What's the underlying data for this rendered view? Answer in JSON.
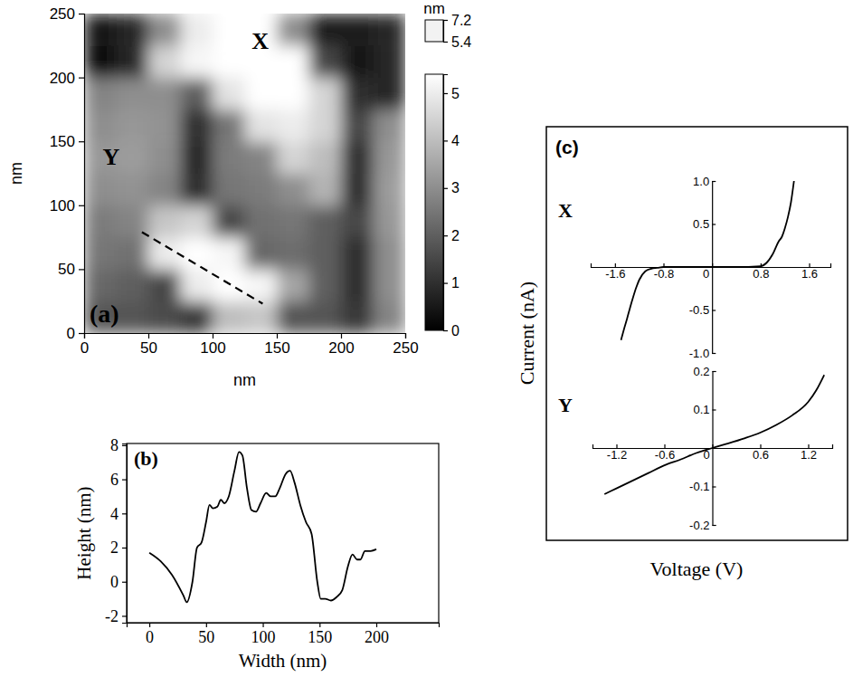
{
  "chart_data": [
    {
      "type": "heatmap",
      "panel": "(a)",
      "xlabel": "nm",
      "ylabel": "nm",
      "xlim": [
        0,
        250
      ],
      "ylim": [
        0,
        250
      ],
      "xticks": [
        0,
        50,
        100,
        150,
        200,
        250
      ],
      "yticks": [
        0,
        50,
        100,
        150,
        200,
        250
      ],
      "x_bins": [
        0,
        25,
        50,
        75,
        100,
        125,
        150,
        175,
        200,
        225,
        250
      ],
      "y_bins": [
        0,
        25,
        50,
        75,
        100,
        125,
        150,
        175,
        200,
        225,
        250
      ],
      "z": [
        [
          1.8,
          1.8,
          1.6,
          1.2,
          4.0,
          4.2,
          1.8,
          1.8,
          1.2,
          2.8
        ],
        [
          2.2,
          2.0,
          1.5,
          5.0,
          5.5,
          5.2,
          3.5,
          2.0,
          1.0,
          3.0
        ],
        [
          2.5,
          2.4,
          5.0,
          5.5,
          5.2,
          2.2,
          2.3,
          2.0,
          1.0,
          3.0
        ],
        [
          2.6,
          2.8,
          4.2,
          4.5,
          1.5,
          2.4,
          2.5,
          2.0,
          1.5,
          3.2
        ],
        [
          3.0,
          3.1,
          2.8,
          1.0,
          2.5,
          2.6,
          3.0,
          3.8,
          1.0,
          3.3
        ],
        [
          3.2,
          3.3,
          3.0,
          0.8,
          2.6,
          2.8,
          4.5,
          4.0,
          1.0,
          3.2
        ],
        [
          3.0,
          3.2,
          3.1,
          1.0,
          2.5,
          4.8,
          5.0,
          4.5,
          1.5,
          3.0
        ],
        [
          2.8,
          3.0,
          3.0,
          2.0,
          4.8,
          5.5,
          5.6,
          4.5,
          1.0,
          0.8
        ],
        [
          0.3,
          0.8,
          4.5,
          5.2,
          5.8,
          6.0,
          5.5,
          1.5,
          0.5,
          0.8
        ],
        [
          0.5,
          0.8,
          3.0,
          5.0,
          5.6,
          5.8,
          3.0,
          0.6,
          0.6,
          0.8
        ]
      ],
      "colorbar": {
        "label": "nm",
        "lim": [
          0,
          5.4
        ],
        "ticks": [
          0,
          1,
          2,
          3,
          4,
          5
        ],
        "over_lim": [
          5.4,
          7.2
        ],
        "over_ticks": [
          5.4,
          7.2
        ]
      },
      "annotations": [
        {
          "text": "X",
          "x": 137,
          "y": 229
        },
        {
          "text": "Y",
          "x": 21,
          "y": 138
        }
      ],
      "profile": {
        "x": [
          45,
          139
        ],
        "y": [
          79,
          23
        ],
        "line_style": "dashed"
      }
    },
    {
      "type": "line",
      "panel": "(b)",
      "xlabel": "Width (nm)",
      "ylabel": "Height (nm)",
      "xlim": [
        -20,
        255
      ],
      "ylim": [
        -2.4,
        8.1
      ],
      "xticks": [
        0,
        50,
        100,
        150,
        200
      ],
      "yticks": [
        -2,
        0,
        2,
        4,
        6,
        8
      ],
      "x": [
        0,
        10,
        20,
        30,
        33,
        38,
        42,
        46,
        50,
        53,
        56,
        60,
        63,
        66,
        70,
        75,
        79,
        82,
        86,
        90,
        94,
        98,
        103,
        107,
        111,
        115,
        120,
        124,
        128,
        133,
        138,
        143,
        148,
        151,
        155,
        160,
        165,
        170,
        175,
        179,
        183,
        186,
        190,
        195,
        200
      ],
      "series": [
        {
          "color": "#000000",
          "values": [
            1.7,
            1.2,
            0.4,
            -0.8,
            -1.2,
            0,
            2.0,
            2.3,
            3.5,
            4.5,
            4.3,
            4.4,
            4.8,
            4.6,
            5.0,
            6.5,
            7.6,
            7.4,
            5.5,
            4.2,
            4.1,
            4.6,
            5.2,
            5.0,
            5.0,
            5.5,
            6.3,
            6.5,
            5.8,
            4.5,
            3.5,
            2.8,
            0,
            -1.0,
            -1.0,
            -1.1,
            -0.9,
            -0.5,
            0.9,
            1.6,
            1.3,
            1.3,
            1.8,
            1.8,
            1.9
          ]
        }
      ]
    },
    {
      "type": "line",
      "panel": "(c)",
      "title": "X",
      "xlabel": "Voltage (V)",
      "ylabel": "Current (nA)",
      "xlim": [
        -2.0,
        1.95
      ],
      "ylim": [
        -1.0,
        1.0
      ],
      "xticks": [
        -1.6,
        -0.8,
        0,
        0.8,
        1.6
      ],
      "yticks": [
        {
          "value": -1,
          "label": "-1.0"
        },
        -0.5,
        0.5,
        {
          "value": 1,
          "label": "1.0"
        }
      ],
      "x": [
        -1.5,
        -1.45,
        -1.4,
        -1.35,
        -1.3,
        -1.25,
        -1.2,
        -1.1,
        -1.0,
        -0.9,
        -0.8,
        -0.4,
        0,
        0.4,
        0.8,
        0.9,
        1.0,
        1.1,
        1.15,
        1.2,
        1.25,
        1.3,
        1.35
      ],
      "series": [
        {
          "color": "#000000",
          "values": [
            -0.85,
            -0.72,
            -0.6,
            -0.47,
            -0.35,
            -0.24,
            -0.15,
            -0.05,
            -0.02,
            -0.01,
            0,
            0,
            0,
            0,
            0.01,
            0.05,
            0.15,
            0.3,
            0.35,
            0.45,
            0.58,
            0.75,
            1.0
          ]
        }
      ]
    },
    {
      "type": "line",
      "title": "Y",
      "xlim": [
        -1.5,
        1.5
      ],
      "ylim": [
        -0.2,
        0.2
      ],
      "xticks": [
        -1.2,
        -0.6,
        0,
        0.6,
        1.2
      ],
      "yticks": [
        -0.2,
        -0.1,
        0.1,
        0.2
      ],
      "x": [
        -1.35,
        -1.2,
        -1.0,
        -0.8,
        -0.6,
        -0.4,
        -0.2,
        0,
        0.2,
        0.4,
        0.6,
        0.8,
        1.0,
        1.2,
        1.3,
        1.4
      ],
      "series": [
        {
          "color": "#000000",
          "values": [
            -0.12,
            -0.105,
            -0.085,
            -0.065,
            -0.045,
            -0.03,
            -0.013,
            0,
            0.012,
            0.025,
            0.04,
            0.06,
            0.085,
            0.12,
            0.15,
            0.19
          ]
        }
      ]
    }
  ]
}
